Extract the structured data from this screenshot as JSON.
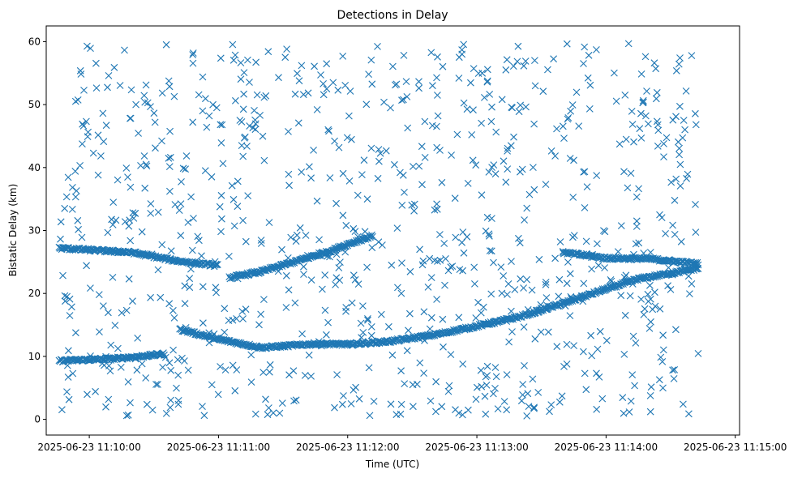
{
  "chart_data": {
    "type": "scatter",
    "title": "Detections in Delay",
    "xlabel": "Time (UTC)",
    "ylabel": "Bistatic Delay (km)",
    "marker": "x",
    "color": "#1f77b4",
    "grid": false,
    "x_range": [
      "2025-06-23 11:09:40",
      "2025-06-23 11:15:02"
    ],
    "ylim": [
      -2.5,
      62.5
    ],
    "x_ticks": [
      "2025-06-23 11:10:00",
      "2025-06-23 11:11:00",
      "2025-06-23 11:12:00",
      "2025-06-23 11:13:00",
      "2025-06-23 11:14:00",
      "2025-06-23 11:15:00"
    ],
    "y_ticks": [
      0,
      10,
      20,
      30,
      40,
      50,
      60
    ],
    "tracks": [
      {
        "description": "lower track",
        "points": [
          [
            "2025-06-23 11:09:46",
            9.3
          ],
          [
            "2025-06-23 11:10:10",
            9.6
          ],
          [
            "2025-06-23 11:10:24",
            10.0
          ],
          [
            "2025-06-23 11:10:35",
            10.4
          ],
          [
            "2025-06-23 11:10:42",
            14.3
          ],
          [
            "2025-06-23 11:11:00",
            12.7
          ],
          [
            "2025-06-23 11:11:20",
            11.4
          ],
          [
            "2025-06-23 11:11:45",
            12.0
          ],
          [
            "2025-06-23 11:12:00",
            11.9
          ],
          [
            "2025-06-23 11:12:20",
            12.4
          ],
          [
            "2025-06-23 11:12:40",
            13.4
          ],
          [
            "2025-06-23 11:13:00",
            14.8
          ],
          [
            "2025-06-23 11:13:20",
            16.3
          ],
          [
            "2025-06-23 11:13:40",
            18.4
          ],
          [
            "2025-06-23 11:14:00",
            20.7
          ],
          [
            "2025-06-23 11:14:15",
            22.3
          ],
          [
            "2025-06-23 11:14:30",
            23.2
          ],
          [
            "2025-06-23 11:14:43",
            24.0
          ]
        ]
      },
      {
        "description": "upper track",
        "points": [
          [
            "2025-06-23 11:09:46",
            27.2
          ],
          [
            "2025-06-23 11:10:20",
            26.5
          ],
          [
            "2025-06-23 11:10:40",
            25.2
          ],
          [
            "2025-06-23 11:11:00",
            24.4
          ],
          [
            "2025-06-23 11:11:05",
            22.5
          ],
          [
            "2025-06-23 11:11:20",
            23.5
          ],
          [
            "2025-06-23 11:11:30",
            24.5
          ],
          [
            "2025-06-23 11:11:50",
            26.5
          ],
          [
            "2025-06-23 11:12:00",
            27.8
          ],
          [
            "2025-06-23 11:12:12",
            29.2
          ]
        ]
      },
      {
        "description": "upper right track",
        "points": [
          [
            "2025-06-23 11:13:40",
            26.5
          ],
          [
            "2025-06-23 11:14:00",
            25.6
          ],
          [
            "2025-06-23 11:14:20",
            25.5
          ],
          [
            "2025-06-23 11:14:43",
            24.7
          ]
        ]
      }
    ],
    "scatter_noise": {
      "description": "uniformly scattered detections",
      "x_span": [
        "2025-06-23 11:09:46",
        "2025-06-23 11:14:43"
      ],
      "y_span": [
        0.5,
        59.8
      ],
      "count": 900
    }
  }
}
